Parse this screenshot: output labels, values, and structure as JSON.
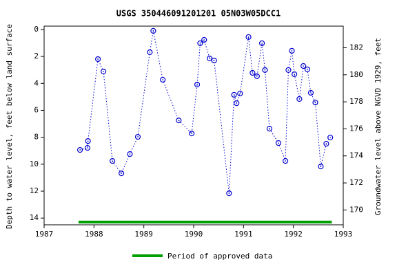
{
  "chart_data": {
    "type": "scatter",
    "title": "USGS 350446091201201 05N03W05DCC1",
    "y_label": "Depth to water level, feet below land surface",
    "y2_label": "Groundwater level above NGVD 1929, feet",
    "x": [
      1987.72,
      1987.87,
      1987.88,
      1988.08,
      1988.19,
      1988.37,
      1988.55,
      1988.72,
      1988.88,
      1989.12,
      1989.19,
      1989.38,
      1989.7,
      1989.96,
      1990.07,
      1990.13,
      1990.21,
      1990.32,
      1990.41,
      1990.71,
      1990.81,
      1990.86,
      1990.93,
      1991.1,
      1991.18,
      1991.27,
      1991.37,
      1991.43,
      1991.52,
      1991.7,
      1991.84,
      1991.9,
      1991.97,
      1992.02,
      1992.12,
      1992.2,
      1992.28,
      1992.35,
      1992.44,
      1992.55,
      1992.66,
      1992.74
    ],
    "values": [
      8.94,
      8.79,
      8.28,
      2.2,
      3.12,
      9.76,
      10.68,
      9.25,
      7.97,
      1.69,
      0.1,
      3.73,
      6.75,
      7.72,
      4.09,
      1.02,
      0.77,
      2.15,
      2.3,
      12.16,
      4.85,
      5.47,
      4.75,
      0.56,
      3.22,
      3.47,
      1.02,
      3.01,
      7.36,
      8.43,
      9.76,
      3.01,
      1.58,
      3.32,
      5.16,
      2.71,
      2.96,
      4.7,
      5.42,
      10.17,
      8.48,
      8.02
    ],
    "color": "#0000cc",
    "xlim": [
      1987,
      1993
    ],
    "xticks": [
      1987,
      1988,
      1989,
      1990,
      1991,
      1992,
      1993
    ],
    "ylim": [
      -0.25,
      14.5
    ],
    "yticks": [
      0,
      2,
      4,
      6,
      8,
      10,
      12,
      14
    ],
    "y_inverted": true,
    "y2lim": [
      168.9,
      183.6
    ],
    "y2ticks": [
      170,
      172,
      174,
      176,
      178,
      180,
      182
    ],
    "approved_period": {
      "name": "Period of approved data",
      "color": "#00a000",
      "x": [
        1987.69,
        1992.77
      ]
    }
  }
}
